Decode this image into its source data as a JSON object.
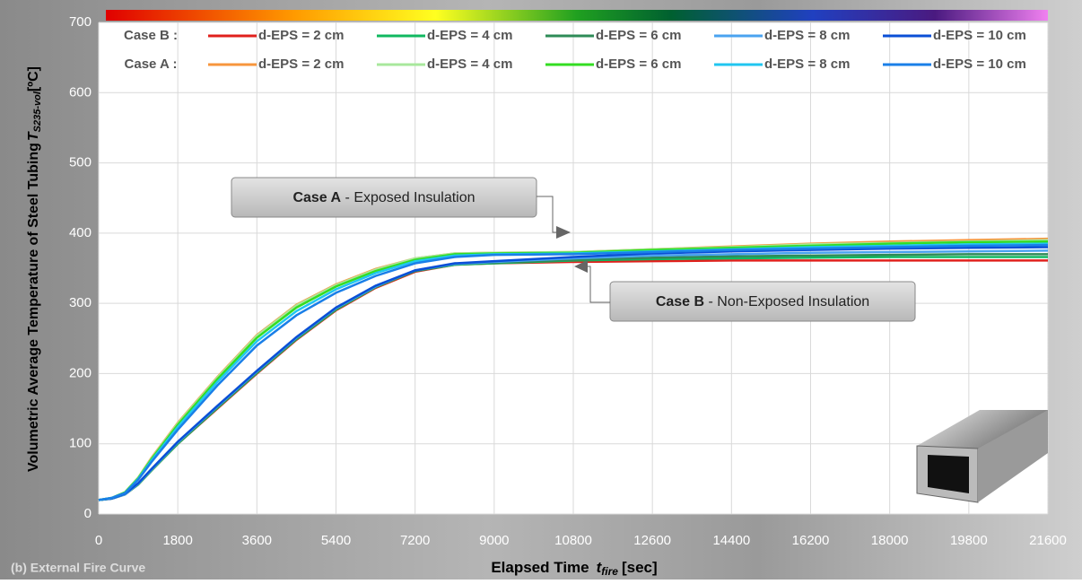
{
  "chart_data": {
    "type": "line",
    "y_label": "Volumetric Average Temperature of Steel Tubing",
    "y_label_symbol": "T",
    "y_label_sub": "S235-vol",
    "y_label_unit": "[ºC]",
    "x_label": "Elapsed Time",
    "x_label_symbol": "t",
    "x_label_sub": "fire",
    "x_label_unit": "[sec]",
    "footnote": "(b)  External Fire Curve",
    "legend_groups": [
      "Case B :",
      "Case A :"
    ],
    "annotations": [
      {
        "bold": "Case A",
        "text": " - Exposed Insulation"
      },
      {
        "bold": "Case B",
        "text": " - Non-Exposed Insulation"
      }
    ],
    "xlim": [
      0,
      21600
    ],
    "ylim": [
      0,
      700
    ],
    "xticks": [
      0,
      1800,
      3600,
      5400,
      7200,
      9000,
      10800,
      12600,
      14400,
      16200,
      18000,
      19800,
      21600
    ],
    "yticks": [
      0,
      100,
      200,
      300,
      400,
      500,
      600,
      700
    ],
    "grid": true,
    "x": [
      0,
      300,
      600,
      900,
      1200,
      1800,
      2700,
      3600,
      4500,
      5400,
      6300,
      7200,
      8100,
      9000,
      10800,
      12600,
      14400,
      16200,
      18000,
      19800,
      21600
    ],
    "series": [
      {
        "name": "d-EPS = 2 cm",
        "color": "#e0201c",
        "values": [
          20,
          22,
          28,
          42,
          62,
          100,
          150,
          200,
          248,
          290,
          322,
          345,
          355,
          357,
          359,
          360,
          361,
          361,
          361,
          361,
          361
        ]
      },
      {
        "name": "d-EPS = 4 cm",
        "color": "#10b860",
        "values": [
          20,
          22,
          28,
          42,
          62,
          100,
          151,
          201,
          249,
          291,
          323,
          346,
          355,
          357,
          361,
          363,
          364,
          365,
          366,
          366,
          366
        ]
      },
      {
        "name": "d-EPS = 6 cm",
        "color": "#2e8b57",
        "values": [
          20,
          22,
          28,
          43,
          63,
          101,
          152,
          202,
          250,
          292,
          324,
          346,
          356,
          358,
          362,
          365,
          367,
          368,
          369,
          370,
          370
        ]
      },
      {
        "name": "d-EPS = 8 cm",
        "color": "#4aa3f0",
        "values": [
          20,
          22,
          28,
          43,
          63,
          102,
          153,
          203,
          251,
          293,
          324,
          347,
          356,
          359,
          364,
          368,
          370,
          372,
          373,
          374,
          375
        ]
      },
      {
        "name": "d-EPS = 10 cm",
        "color": "#0a4fd6",
        "values": [
          20,
          22,
          29,
          44,
          64,
          103,
          154,
          204,
          252,
          294,
          325,
          347,
          357,
          360,
          366,
          371,
          374,
          376,
          378,
          379,
          380
        ]
      },
      {
        "name": "d-EPS = 2 cm",
        "color": "#f7963c",
        "values": [
          20,
          23,
          31,
          52,
          80,
          130,
          195,
          255,
          298,
          327,
          349,
          364,
          371,
          372,
          373,
          377,
          381,
          385,
          388,
          390,
          392
        ]
      },
      {
        "name": "d-EPS = 4 cm",
        "color": "#a8e89c",
        "values": [
          20,
          23,
          31,
          52,
          79,
          129,
          194,
          254,
          297,
          326,
          348,
          364,
          371,
          372,
          373,
          377,
          380,
          384,
          386,
          388,
          390
        ]
      },
      {
        "name": "d-EPS = 6 cm",
        "color": "#33dd22",
        "values": [
          20,
          23,
          31,
          51,
          78,
          127,
          192,
          251,
          294,
          324,
          346,
          362,
          370,
          371,
          372,
          376,
          379,
          382,
          385,
          387,
          388
        ]
      },
      {
        "name": "d-EPS = 8 cm",
        "color": "#20c6f0",
        "values": [
          20,
          23,
          30,
          50,
          76,
          124,
          188,
          246,
          289,
          320,
          343,
          360,
          368,
          370,
          371,
          374,
          377,
          380,
          382,
          384,
          385
        ]
      },
      {
        "name": "d-EPS = 10 cm",
        "color": "#1a7fe8",
        "values": [
          20,
          23,
          30,
          49,
          74,
          120,
          183,
          240,
          283,
          315,
          339,
          357,
          366,
          369,
          370,
          373,
          376,
          378,
          380,
          382,
          383
        ]
      }
    ]
  }
}
